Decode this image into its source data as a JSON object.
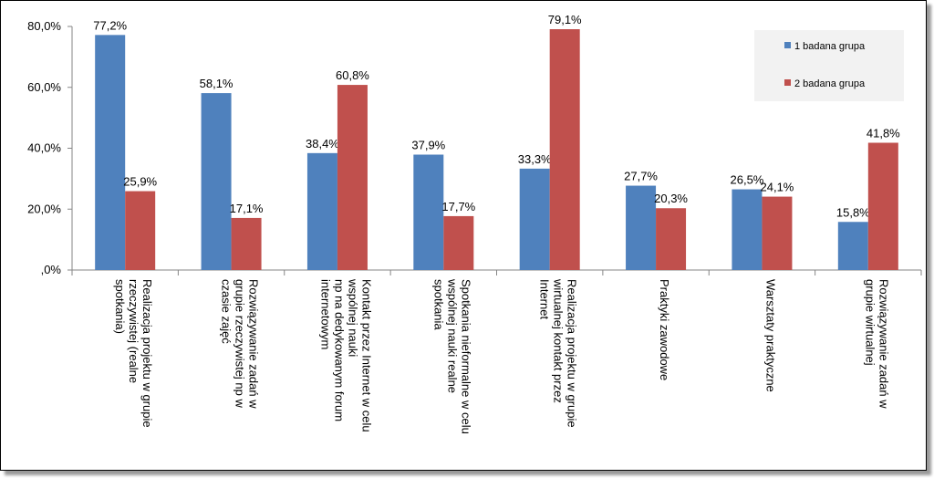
{
  "chart_data": {
    "type": "bar",
    "title": "",
    "xlabel": "",
    "ylabel": "",
    "ylim": [
      0,
      80
    ],
    "yticks": [
      0,
      20,
      40,
      60,
      80
    ],
    "ytick_labels": [
      ",0%",
      "20,0%",
      "40,0%",
      "60,0%",
      "80,0%"
    ],
    "grid": false,
    "legend_position": "top-right",
    "categories": [
      [
        "Realizacja projektu w grupie",
        "rzeczywistej (realne",
        "spotkania)"
      ],
      [
        "Rozwiązywanie zadań w",
        "grupie rzeczywistej np w",
        "czasie zajęć"
      ],
      [
        "Kontakt przez Internet w celu",
        "wspólnej nauki",
        "np na dedykowanym forum",
        "internetowym"
      ],
      [
        "Spotkania nieformalne w celu",
        "wspólnej nauki realne",
        "spotkania"
      ],
      [
        "Realizacja projektu w grupie",
        "wirtualnej kontakt przez",
        "Internet"
      ],
      [
        "Praktyki zawodowe"
      ],
      [
        "Warsztaty praktyczne"
      ],
      [
        "Rozwiązywanie zadań w",
        "grupie wirtualnej"
      ]
    ],
    "series": [
      {
        "name": "1 badana grupa",
        "color": "#4f81bd",
        "values": [
          77.2,
          58.1,
          38.4,
          37.9,
          33.3,
          27.7,
          26.5,
          15.8
        ],
        "labels": [
          "77,2%",
          "58,1%",
          "38,4%",
          "37,9%",
          "33,3%",
          "27,7%",
          "26,5%",
          "15,8%"
        ]
      },
      {
        "name": "2 badana grupa",
        "color": "#c0504d",
        "values": [
          25.9,
          17.1,
          60.8,
          17.7,
          79.1,
          20.3,
          24.1,
          41.8
        ],
        "labels": [
          "25,9%",
          "17,1%",
          "60,8%",
          "17,7%",
          "79,1%",
          "20,3%",
          "24,1%",
          "41,8%"
        ]
      }
    ]
  }
}
